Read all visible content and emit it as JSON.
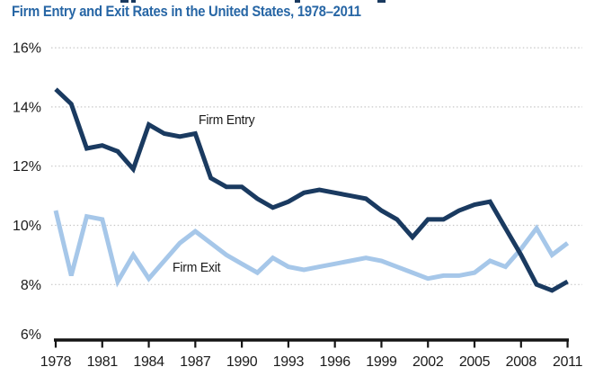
{
  "figure": {
    "title": "Firm Entry and Exit Rates in the United States, 1978–2011",
    "title_color": "#2766a5"
  },
  "chart_data": {
    "type": "line",
    "title": "Firm Entry and Exit Rates in the United States, 1978–2011",
    "xlabel": "",
    "ylabel": "",
    "xlim": [
      1978,
      2011
    ],
    "ylim": [
      6,
      16
    ],
    "grid": "horizontal-dotted",
    "legend_position": "inline-annotations",
    "x": [
      1978,
      1979,
      1980,
      1981,
      1982,
      1983,
      1984,
      1985,
      1986,
      1987,
      1988,
      1989,
      1990,
      1991,
      1992,
      1993,
      1994,
      1995,
      1996,
      1997,
      1998,
      1999,
      2000,
      2001,
      2002,
      2003,
      2004,
      2005,
      2006,
      2007,
      2008,
      2009,
      2010,
      2011
    ],
    "x_tick_labels": [
      "1978",
      "1981",
      "1984",
      "1987",
      "1990",
      "1993",
      "1996",
      "1999",
      "2002",
      "2005",
      "2008",
      "2011"
    ],
    "x_tick_years": [
      1978,
      1981,
      1984,
      1987,
      1990,
      1993,
      1996,
      1999,
      2002,
      2005,
      2008,
      2011
    ],
    "y_tick_labels": [
      "16%",
      "14%",
      "12%",
      "10%",
      "8%",
      "6%"
    ],
    "y_tick_values": [
      16,
      14,
      12,
      10,
      8,
      6
    ],
    "gridline_values": [
      16,
      14,
      12,
      10,
      8
    ],
    "series": [
      {
        "name": "Firm Entry",
        "color": "#1a3a60",
        "values": [
          14.6,
          14.1,
          12.6,
          12.7,
          12.5,
          11.9,
          13.4,
          13.1,
          13.0,
          13.1,
          11.6,
          11.3,
          11.3,
          10.9,
          10.6,
          10.8,
          11.1,
          11.2,
          11.1,
          11.0,
          10.9,
          10.5,
          10.2,
          9.6,
          10.2,
          10.2,
          10.5,
          10.7,
          10.8,
          9.9,
          9.0,
          8.0,
          7.8,
          8.1
        ]
      },
      {
        "name": "Firm Exit",
        "color": "#a6c7e9",
        "values": [
          10.5,
          8.3,
          10.3,
          10.2,
          8.1,
          9.0,
          8.2,
          8.8,
          9.4,
          9.8,
          9.4,
          9.0,
          8.7,
          8.4,
          8.9,
          8.6,
          8.5,
          8.6,
          8.7,
          8.8,
          8.9,
          8.8,
          8.6,
          8.4,
          8.2,
          8.3,
          8.3,
          8.4,
          8.8,
          8.6,
          9.2,
          9.9,
          9.0,
          9.4
        ]
      }
    ],
    "annotations": [
      {
        "text": "Firm Entry",
        "series": "Firm Entry"
      },
      {
        "text": "Firm Exit",
        "series": "Firm Exit"
      }
    ],
    "axis_color": "#141414",
    "gridline_color": "#c8c8c8"
  }
}
